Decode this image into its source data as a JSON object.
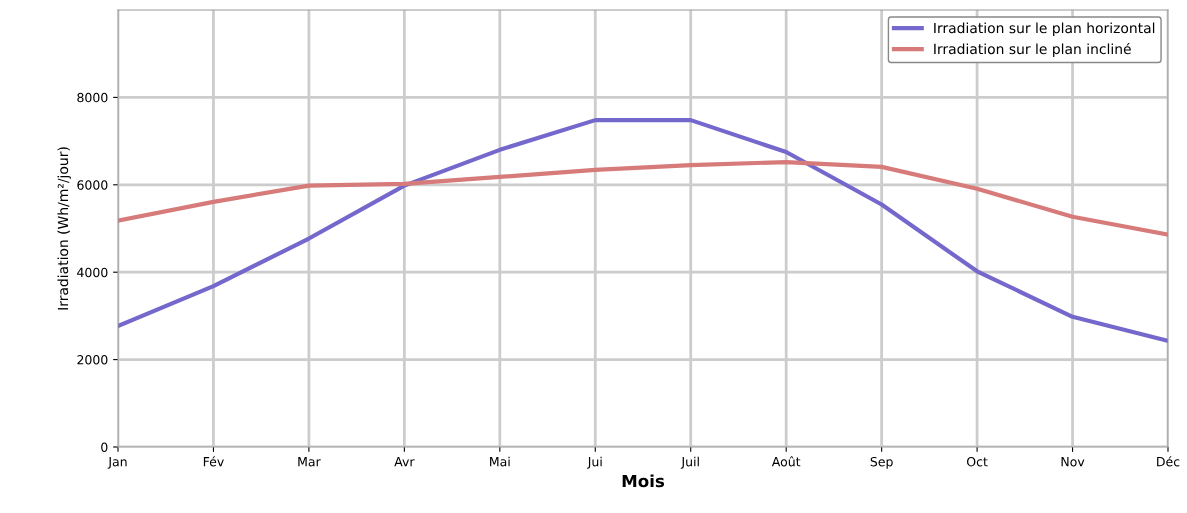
{
  "chart_data": {
    "type": "line",
    "xlabel": "Mois",
    "ylabel": "Irradiation (Wh/m²/jour)",
    "categories": [
      "Jan",
      "Fév",
      "Mar",
      "Avr",
      "Mai",
      "Jui",
      "Juil",
      "Août",
      "Sep",
      "Oct",
      "Nov",
      "Déc"
    ],
    "series": [
      {
        "name": "Irradiation sur le plan horizontal",
        "color": "#7468cc",
        "values": [
          2770,
          3680,
          4770,
          5980,
          6800,
          7480,
          7480,
          6750,
          5550,
          4020,
          2980,
          2430
        ]
      },
      {
        "name": "Irradiation sur le plan incliné",
        "color": "#d77a7a",
        "values": [
          5180,
          5610,
          5980,
          6020,
          6180,
          6340,
          6450,
          6520,
          6410,
          5910,
          5270,
          4860
        ]
      }
    ],
    "ylim": [
      0,
      10000
    ],
    "yticks": [
      0,
      2000,
      4000,
      6000,
      8000
    ],
    "grid": true,
    "legend": "top right"
  }
}
